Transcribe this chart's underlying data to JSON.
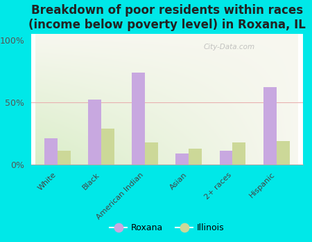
{
  "title": "Breakdown of poor residents within races\n(income below poverty level) in Roxana, IL",
  "categories": [
    "White",
    "Black",
    "American Indian",
    "Asian",
    "2+ races",
    "Hispanic"
  ],
  "roxana_values": [
    21,
    52,
    74,
    9,
    11,
    62
  ],
  "illinois_values": [
    11,
    29,
    18,
    13,
    18,
    19
  ],
  "roxana_color": "#c8a8e0",
  "illinois_color": "#ccd898",
  "background_color": "#00e8e8",
  "grid_color": "#e8b0b0",
  "title_fontsize": 12,
  "bar_width": 0.3,
  "ylim": [
    0,
    105
  ],
  "yticks": [
    0,
    50,
    100
  ],
  "ytick_labels": [
    "0%",
    "50%",
    "100%"
  ],
  "watermark": "City-Data.com",
  "legend_labels": [
    "Roxana",
    "Illinois"
  ]
}
